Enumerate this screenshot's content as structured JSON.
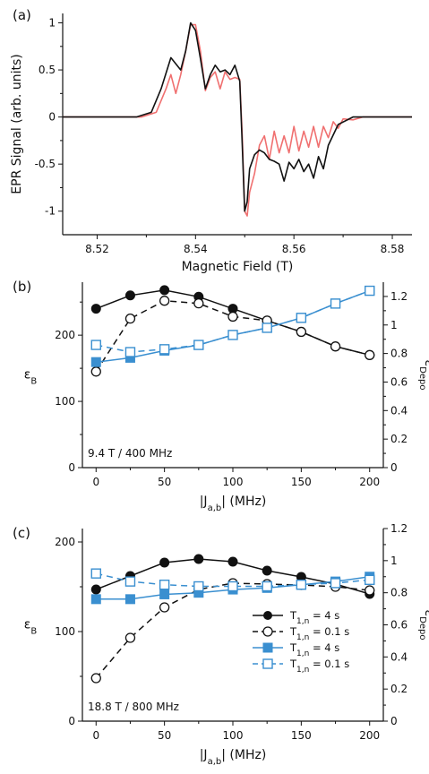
{
  "colors": {
    "black": "#111111",
    "red": "#f07070",
    "blue": "#3a8fd0"
  },
  "chart_data": [
    {
      "panel": "(a)",
      "type": "line",
      "xlabel": "Magnetic Field (T)",
      "ylabel": "EPR Signal (arb. units)",
      "xlim": [
        8.513,
        8.584
      ],
      "ylim": [
        -1.25,
        1.1
      ],
      "xticks": [
        "8.52",
        "8.54",
        "8.56",
        "8.58"
      ],
      "yticks": [
        "-1",
        "-0.5",
        "0",
        "0.5",
        "1"
      ],
      "series": [
        {
          "color": "#111111",
          "x": [
            8.513,
            8.528,
            8.531,
            8.533,
            8.535,
            8.537,
            8.538,
            8.539,
            8.54,
            8.541,
            8.542,
            8.543,
            8.544,
            8.545,
            8.546,
            8.547,
            8.548,
            8.549,
            8.5495,
            8.55,
            8.5505,
            8.551,
            8.552,
            8.553,
            8.554,
            8.555,
            8.556,
            8.557,
            8.558,
            8.559,
            8.56,
            8.561,
            8.562,
            8.563,
            8.564,
            8.565,
            8.566,
            8.567,
            8.569,
            8.572,
            8.576,
            8.584
          ],
          "y": [
            0,
            0,
            0.05,
            0.3,
            0.63,
            0.5,
            0.7,
            1.0,
            0.92,
            0.62,
            0.3,
            0.45,
            0.55,
            0.48,
            0.5,
            0.45,
            0.55,
            0.38,
            -0.3,
            -1.0,
            -0.9,
            -0.55,
            -0.4,
            -0.35,
            -0.38,
            -0.45,
            -0.47,
            -0.5,
            -0.68,
            -0.48,
            -0.55,
            -0.45,
            -0.58,
            -0.5,
            -0.65,
            -0.42,
            -0.55,
            -0.3,
            -0.08,
            0,
            0,
            0
          ]
        },
        {
          "color": "#f07070",
          "x": [
            8.513,
            8.529,
            8.532,
            8.534,
            8.535,
            8.536,
            8.537,
            8.538,
            8.539,
            8.54,
            8.541,
            8.542,
            8.543,
            8.544,
            8.545,
            8.546,
            8.547,
            8.548,
            8.549,
            8.5495,
            8.55,
            8.5505,
            8.551,
            8.552,
            8.553,
            8.554,
            8.555,
            8.556,
            8.557,
            8.558,
            8.559,
            8.56,
            8.561,
            8.562,
            8.563,
            8.564,
            8.565,
            8.566,
            8.567,
            8.568,
            8.569,
            8.57,
            8.572,
            8.574,
            8.576,
            8.584
          ],
          "y": [
            0,
            0,
            0.05,
            0.3,
            0.45,
            0.25,
            0.45,
            0.7,
            0.98,
            0.98,
            0.7,
            0.28,
            0.42,
            0.48,
            0.3,
            0.48,
            0.4,
            0.42,
            0.4,
            -0.2,
            -1.0,
            -1.05,
            -0.8,
            -0.6,
            -0.3,
            -0.2,
            -0.45,
            -0.15,
            -0.38,
            -0.2,
            -0.38,
            -0.1,
            -0.36,
            -0.15,
            -0.32,
            -0.1,
            -0.32,
            -0.1,
            -0.22,
            -0.05,
            -0.12,
            -0.02,
            -0.03,
            0,
            0,
            0
          ]
        }
      ]
    },
    {
      "panel": "(b)",
      "type": "line",
      "condition": "9.4 T / 400 MHz",
      "xlabel": "|Ja,b| (MHz)",
      "ylabel": "εB",
      "ylabel_right": "εDepo",
      "xlim": [
        -10,
        210
      ],
      "ylim": [
        0,
        280
      ],
      "ylim_right": [
        0,
        1.3
      ],
      "xticks": [
        "0",
        "50",
        "100",
        "150",
        "200"
      ],
      "yticks": [
        "0",
        "100",
        "200"
      ],
      "yticks_right": [
        "0",
        "0.2",
        "0.4",
        "0.6",
        "0.8",
        "1",
        "1.2"
      ],
      "x": [
        0,
        25,
        50,
        75,
        100,
        125,
        150,
        175,
        200
      ],
      "series": [
        {
          "name": "T1,n = 4 s",
          "axis": "left",
          "color": "#111111",
          "marker": "filled-circle",
          "dash": false,
          "values": [
            240,
            260,
            268,
            258,
            240,
            222,
            205,
            183,
            170
          ]
        },
        {
          "name": "T1,n = 0.1 s",
          "axis": "left",
          "color": "#111111",
          "marker": "open-circle",
          "dash": true,
          "values": [
            145,
            225,
            252,
            248,
            228,
            222,
            205,
            183,
            170
          ]
        },
        {
          "name": "T1,n = 4 s",
          "axis": "right",
          "color": "#3a8fd0",
          "marker": "filled-square",
          "dash": false,
          "values": [
            0.74,
            0.77,
            0.82,
            0.86,
            0.93,
            0.98,
            1.05,
            1.15,
            1.24
          ]
        },
        {
          "name": "T1,n = 0.1 s",
          "axis": "right",
          "color": "#3a8fd0",
          "marker": "open-square",
          "dash": true,
          "values": [
            0.86,
            0.81,
            0.83,
            0.86,
            0.93,
            0.98,
            1.05,
            1.15,
            1.24
          ]
        }
      ]
    },
    {
      "panel": "(c)",
      "type": "line",
      "condition": "18.8 T / 800 MHz",
      "xlabel": "|Ja,b| (MHz)",
      "ylabel": "εB",
      "ylabel_right": "εDepo",
      "xlim": [
        -10,
        210
      ],
      "ylim": [
        0,
        215
      ],
      "ylim_right": [
        0,
        1.2
      ],
      "xticks": [
        "0",
        "50",
        "100",
        "150",
        "200"
      ],
      "yticks": [
        "0",
        "100",
        "200"
      ],
      "yticks_right": [
        "0",
        "0.2",
        "0.4",
        "0.6",
        "0.8",
        "1",
        "1.2"
      ],
      "legend_position": "lower right",
      "x": [
        0,
        25,
        50,
        75,
        100,
        125,
        150,
        175,
        200
      ],
      "series": [
        {
          "name": "T1,n = 4 s",
          "axis": "left",
          "color": "#111111",
          "marker": "filled-circle",
          "dash": false,
          "values": [
            147,
            162,
            177,
            181,
            178,
            168,
            161,
            153,
            142
          ]
        },
        {
          "name": "T1,n = 0.1 s",
          "axis": "left",
          "color": "#111111",
          "marker": "open-circle",
          "dash": true,
          "values": [
            48,
            93,
            127,
            147,
            154,
            153,
            152,
            150,
            146
          ]
        },
        {
          "name": "T1,n = 4 s",
          "axis": "right",
          "color": "#3a8fd0",
          "marker": "filled-square",
          "dash": false,
          "values": [
            0.76,
            0.76,
            0.79,
            0.8,
            0.82,
            0.83,
            0.85,
            0.87,
            0.9
          ]
        },
        {
          "name": "T1,n = 0.1 s",
          "axis": "right",
          "color": "#3a8fd0",
          "marker": "open-square",
          "dash": true,
          "values": [
            0.92,
            0.87,
            0.85,
            0.84,
            0.84,
            0.84,
            0.85,
            0.86,
            0.88
          ]
        }
      ]
    }
  ]
}
